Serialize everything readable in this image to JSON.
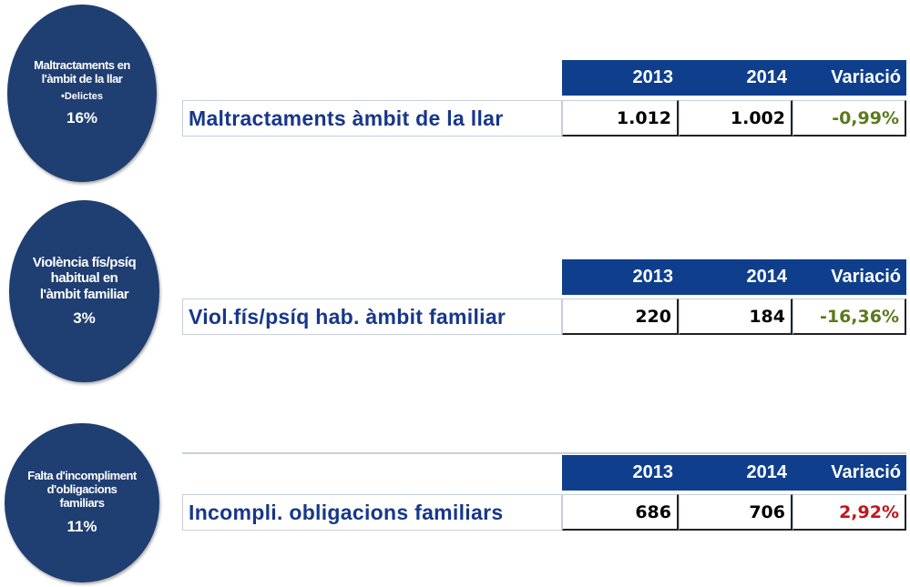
{
  "sections": [
    {
      "circle": {
        "title": "Maltractaments en l'àmbit de la llar",
        "subtitle": "•Delictes",
        "percent": "16%"
      },
      "table": {
        "header": [
          "2013",
          "2014",
          "Variació"
        ],
        "row": {
          "label": "Maltractaments àmbit de la llar",
          "values": [
            "1.012",
            "1.002",
            "-0,99%"
          ],
          "variation_color": "#5b7a1c"
        }
      }
    },
    {
      "circle": {
        "title": "Violència fís/psíq habitual en l'àmbit familiar",
        "percent": "3%"
      },
      "table": {
        "header": [
          "2013",
          "2014",
          "Variació"
        ],
        "row": {
          "label": "Viol.fís/psíq hab. àmbit familiar",
          "values": [
            "220",
            "184",
            "-16,36%"
          ],
          "variation_color": "#5b7a1c"
        }
      }
    },
    {
      "circle": {
        "title": "Falta d'incompliment d'obligacions familiars",
        "percent": "11%"
      },
      "table": {
        "header": [
          "2013",
          "2014",
          "Variació"
        ],
        "row": {
          "label": "Incompli. obligacions familiars",
          "values": [
            "686",
            "706",
            "2,92%"
          ],
          "variation_color": "#c0161e"
        }
      }
    }
  ]
}
